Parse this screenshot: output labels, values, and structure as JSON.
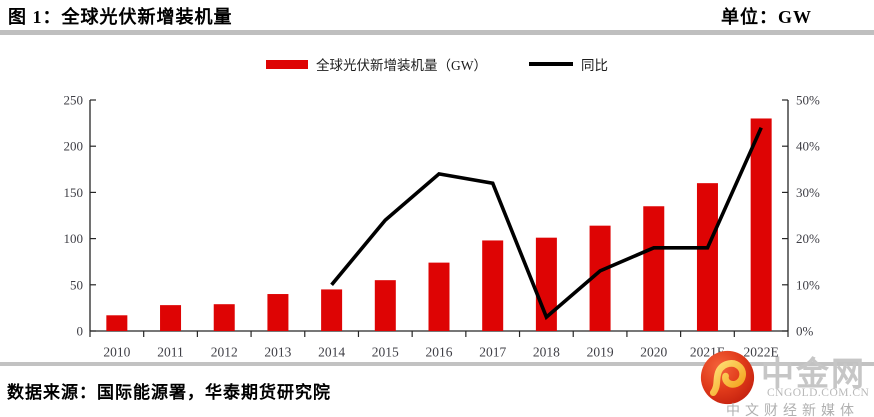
{
  "header": {
    "title": "图 1：全球光伏新增装机量",
    "unit": "单位：GW"
  },
  "legend": {
    "items": [
      {
        "label": "全球光伏新增装机量（GW）",
        "type": "bar",
        "color": "#de0404"
      },
      {
        "label": "同比",
        "type": "line",
        "color": "#000000"
      }
    ]
  },
  "chart_data": {
    "type": "bar",
    "title": "全球光伏新增装机量",
    "unit": "GW",
    "categories": [
      "2010",
      "2011",
      "2012",
      "2013",
      "2014",
      "2015",
      "2016",
      "2017",
      "2018",
      "2019",
      "2020",
      "2021E",
      "2022E"
    ],
    "series": [
      {
        "name": "全球光伏新增装机量（GW）",
        "type": "bar",
        "axis": "left",
        "color": "#de0404",
        "values": [
          17,
          28,
          29,
          40,
          45,
          55,
          74,
          98,
          101,
          114,
          135,
          160,
          230
        ]
      },
      {
        "name": "同比",
        "type": "line",
        "axis": "right",
        "color": "#000000",
        "values": [
          null,
          null,
          null,
          null,
          10,
          24,
          34,
          32,
          3,
          13,
          18,
          18,
          44
        ]
      }
    ],
    "left_axis": {
      "min": 0,
      "max": 250,
      "step": 50,
      "tick_labels": [
        "0",
        "50",
        "100",
        "150",
        "200",
        "250"
      ]
    },
    "right_axis": {
      "min": 0,
      "max": 50,
      "step": 10,
      "unit": "%",
      "tick_labels": [
        "0%",
        "10%",
        "20%",
        "30%",
        "40%",
        "50%"
      ]
    },
    "grid": false,
    "legend_position": "top"
  },
  "colors": {
    "bar_red": "#de0404",
    "line_black": "#000000",
    "axis_line": "#262626",
    "tick_text": "#3f3f46",
    "divider_gray": "#bfbfbf",
    "logo_red": "#e03a1a",
    "logo_gold": "#f7b52c",
    "watermark_gray": "#c6c6c6"
  },
  "footer": {
    "source": "数据来源：国际能源署，华泰期货研究院"
  },
  "watermark": {
    "name": "中金网",
    "domain": "CNGOLD.COM.CN",
    "tagline": "中文财经新媒体"
  }
}
